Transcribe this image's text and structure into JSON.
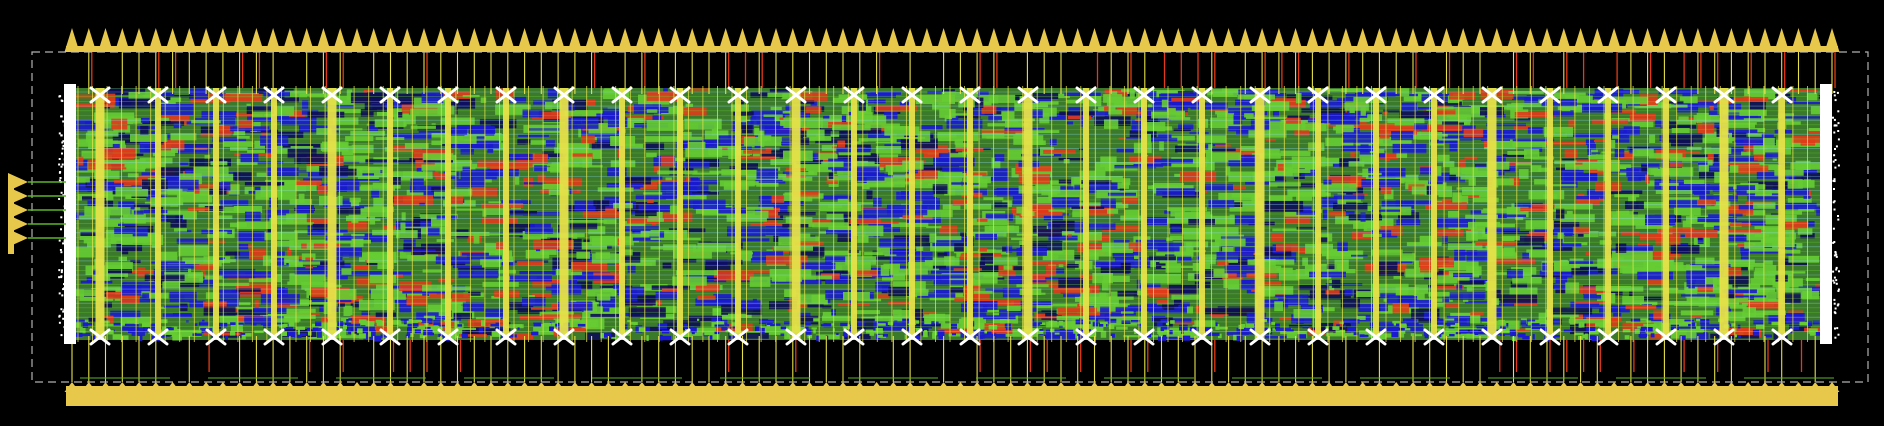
{
  "view": {
    "name": "chip-layout-view",
    "background": "#000000"
  },
  "palette": {
    "pad": "#e8c84a",
    "power_strap": "#e6e14a",
    "metal_green": "#66cc33",
    "metal_blue": "#1a1ad0",
    "metal_red": "#e23a1a",
    "via_white": "#ffffff",
    "boundary": "#b0b0b0",
    "io_wire": "#5ab52a"
  },
  "io": {
    "top_pad_count": 106,
    "bottom_pad_count": 106,
    "left_pin_count": 5,
    "top_pin_wire_density": 0.8
  },
  "power_grid": {
    "major_strap_count": 30,
    "minor_strap_count": 120
  },
  "layers": {
    "routing_blocks": 3200,
    "horizontal_tracks": 52
  }
}
